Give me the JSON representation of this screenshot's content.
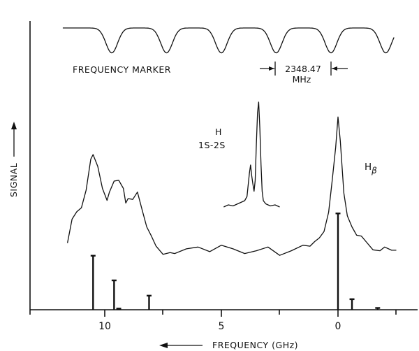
{
  "chart_data": {
    "type": "line",
    "title": "",
    "xlabel": "FREQUENCY (GHz)",
    "ylabel": "SIGNAL",
    "x_direction": "reversed",
    "xlim": [
      13.2,
      -3.4
    ],
    "xticks": [
      10,
      5,
      0
    ],
    "xtick_labels": [
      "10",
      "5",
      "0"
    ],
    "grid": false,
    "annotations": {
      "marker_label": "FREQUENCY MARKER",
      "marker_spacing_value": "2348.47",
      "marker_spacing_unit": "MHz",
      "h_label": "H",
      "h_transition": "1S-2S",
      "hbeta_main": "H",
      "hbeta_sub": "β"
    },
    "series": [
      {
        "role": "frequency-marker",
        "marker_minima_x": [
          9.7,
          7.35,
          5.0,
          2.65,
          0.3,
          -2.05
        ],
        "baseline": 1.0,
        "dip_depth": 0.55
      },
      {
        "role": "h-beta-spectrum",
        "x": [
          11.6,
          11.4,
          11.2,
          11.0,
          10.8,
          10.6,
          10.5,
          10.3,
          10.1,
          9.9,
          9.8,
          9.6,
          9.4,
          9.2,
          9.1,
          9.0,
          8.8,
          8.6,
          8.4,
          8.2,
          8.0,
          7.8,
          7.5,
          7.2,
          7.0,
          6.5,
          6.0,
          5.5,
          5.0,
          4.5,
          4.0,
          3.5,
          3.0,
          2.5,
          2.0,
          1.5,
          1.2,
          1.0,
          0.8,
          0.6,
          0.4,
          0.25,
          0.1,
          0.0,
          -0.1,
          -0.25,
          -0.4,
          -0.6,
          -0.8,
          -1.0,
          -1.2,
          -1.5,
          -1.8,
          -2.0,
          -2.3,
          -2.5
        ],
        "y": [
          0.17,
          0.3,
          0.34,
          0.37,
          0.45,
          0.62,
          0.66,
          0.58,
          0.46,
          0.41,
          0.44,
          0.5,
          0.52,
          0.46,
          0.38,
          0.42,
          0.4,
          0.44,
          0.36,
          0.25,
          0.2,
          0.16,
          0.1,
          0.11,
          0.12,
          0.13,
          0.14,
          0.13,
          0.15,
          0.13,
          0.12,
          0.12,
          0.14,
          0.11,
          0.12,
          0.15,
          0.16,
          0.17,
          0.19,
          0.24,
          0.33,
          0.5,
          0.7,
          0.85,
          0.72,
          0.45,
          0.31,
          0.25,
          0.22,
          0.2,
          0.17,
          0.14,
          0.12,
          0.14,
          0.13,
          0.13
        ]
      },
      {
        "role": "h-1s-2s-inset",
        "x": [
          4.9,
          4.7,
          4.5,
          4.3,
          4.1,
          4.0,
          3.9,
          3.8,
          3.75,
          3.7,
          3.65,
          3.6,
          3.55,
          3.5,
          3.45,
          3.4,
          3.35,
          3.3,
          3.25,
          3.2,
          3.1,
          3.0,
          2.9,
          2.7,
          2.5
        ],
        "y": [
          0.0,
          0.02,
          0.01,
          0.03,
          0.05,
          0.06,
          0.1,
          0.32,
          0.4,
          0.3,
          0.22,
          0.15,
          0.25,
          0.6,
          0.9,
          1.0,
          0.75,
          0.4,
          0.15,
          0.06,
          0.03,
          0.02,
          0.01,
          0.02,
          0.0
        ]
      },
      {
        "role": "stick-spectrum",
        "x": [
          10.5,
          9.6,
          9.4,
          8.1,
          0.0,
          -0.6,
          -1.7
        ],
        "y": [
          0.46,
          0.25,
          0.01,
          0.12,
          0.82,
          0.09,
          0.015
        ]
      }
    ]
  }
}
